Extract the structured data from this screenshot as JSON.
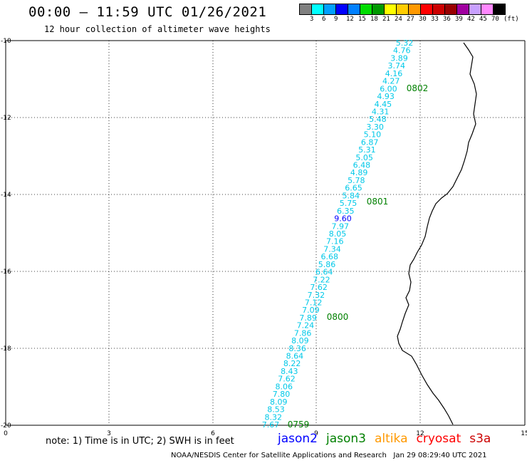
{
  "header": {
    "title": "00:00 – 11:59 UTC 01/26/2021",
    "subtitle": "12 hour collection of altimeter wave heights"
  },
  "legend": {
    "colors": [
      "#808080",
      "#00ffff",
      "#00a0ff",
      "#0000ff",
      "#0080ff",
      "#00dd00",
      "#009900",
      "#ffff00",
      "#ffcc00",
      "#ff9900",
      "#ff0000",
      "#cc0000",
      "#990000",
      "#a000a0",
      "#c8a0ff",
      "#ff88ff",
      "#000000"
    ],
    "labels": [
      "3",
      "6",
      "9",
      "12",
      "15",
      "18",
      "21",
      "24",
      "27",
      "30",
      "33",
      "36",
      "39",
      "42",
      "45",
      "70",
      "(ft)"
    ]
  },
  "map": {
    "lon_ticks": [
      "0",
      "3",
      "6",
      "9",
      "12",
      "15"
    ],
    "lat_ticks": [
      "-10",
      "-12",
      "-14",
      "-16",
      "-18",
      "-20"
    ],
    "swh_values": [
      "5.32",
      "4.76",
      "3.89",
      "3.74",
      "4.16",
      "4.27",
      "6.00",
      "4.93",
      "4.45",
      "4.31",
      "5.48",
      "3.30",
      "5.10",
      "6.87",
      "5.31",
      "5.05",
      "6.48",
      "4.89",
      "5.78",
      "6.65",
      "5.84",
      "5.75",
      "6.35",
      "9.60",
      "7.97",
      "8.05",
      "7.16",
      "7.34",
      "6.68",
      "5.86",
      "6.64",
      "7.22",
      "7.62",
      "7.32",
      "7.12",
      "7.09",
      "7.89",
      "7.24",
      "7.86",
      "8.09",
      "8.36",
      "8.64",
      "8.22",
      "8.43",
      "7.62",
      "8.06",
      "7.80",
      "8.09",
      "8.53",
      "8.32",
      "7.67"
    ],
    "time_labels": [
      "0802",
      "0801",
      "0800",
      "0759"
    ]
  },
  "footer": {
    "note": "note: 1) Time is in UTC; 2) SWH is in feet",
    "satellites": [
      {
        "name": "jason2",
        "color": "#0000ff"
      },
      {
        "name": "jason3",
        "color": "#008000"
      },
      {
        "name": "altika",
        "color": "#ff9900"
      },
      {
        "name": "cryosat",
        "color": "#ff0000"
      },
      {
        "name": "s3a",
        "color": "#cc0000"
      }
    ],
    "credit": "NOAA/NESDIS Center for Satellite Applications and Research   Jan 29 08:29:40 UTC 2021"
  }
}
